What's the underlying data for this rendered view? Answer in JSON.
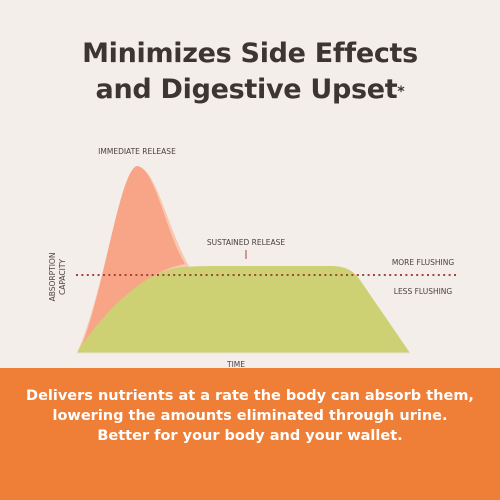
{
  "title": {
    "line1": "Minimizes Side Effects",
    "line2": "and Digestive Upset",
    "mark": "*"
  },
  "chart_data": {
    "type": "area",
    "title": "",
    "xlabel": "TIME",
    "ylabel": "ABSORPTION CAPACITY",
    "series": [
      {
        "name": "IMMEDIATE RELEASE",
        "color": "#f8a98a",
        "fill_light": "#f9c5ac"
      },
      {
        "name": "SUSTAINED RELEASE",
        "color": "#cbd173"
      }
    ],
    "threshold": {
      "label_above": "MORE FLUSHING",
      "label_below": "LESS FLUSHING",
      "color": "#a4453a"
    }
  },
  "banner": {
    "line1": "Delivers nutrients at a rate the body can absorb them,",
    "line2": "lowering the amounts eliminated through urine.",
    "line3": "Better for your body and your wallet."
  },
  "colors": {
    "background": "#f3eeea",
    "banner": "#ef7e36",
    "title": "#3d3532",
    "label": "#4a4140"
  }
}
